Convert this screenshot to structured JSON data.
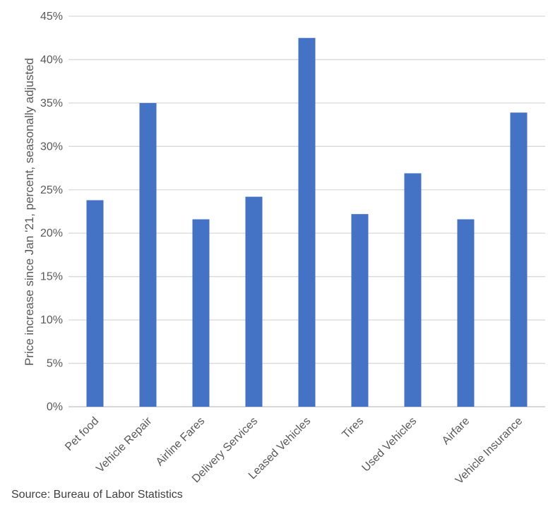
{
  "chart_data": {
    "type": "bar",
    "title": "",
    "xlabel": "",
    "ylabel": "Price increase since Jan '21, percent, seasonally adjusted",
    "categories": [
      "Pet food",
      "Vehicle Repair",
      "Airline Fares",
      "Delivery Services",
      "Leased Vehicles",
      "Tires",
      "Used Vehicles",
      "Airfare",
      "Vehicle Insurance"
    ],
    "values": [
      23.8,
      35.0,
      21.6,
      24.2,
      42.5,
      22.2,
      26.9,
      21.6,
      33.9
    ],
    "ylim": [
      0,
      45
    ],
    "yticks": [
      0,
      5,
      10,
      15,
      20,
      25,
      30,
      35,
      40,
      45
    ],
    "ytick_labels": [
      "0%",
      "5%",
      "10%",
      "15%",
      "20%",
      "25%",
      "30%",
      "35%",
      "40%",
      "45%"
    ],
    "grid": true,
    "legend": "none",
    "bar_color": "#4472C4",
    "grid_color": "#D9D9D9"
  },
  "source": "Source: Bureau of Labor Statistics"
}
